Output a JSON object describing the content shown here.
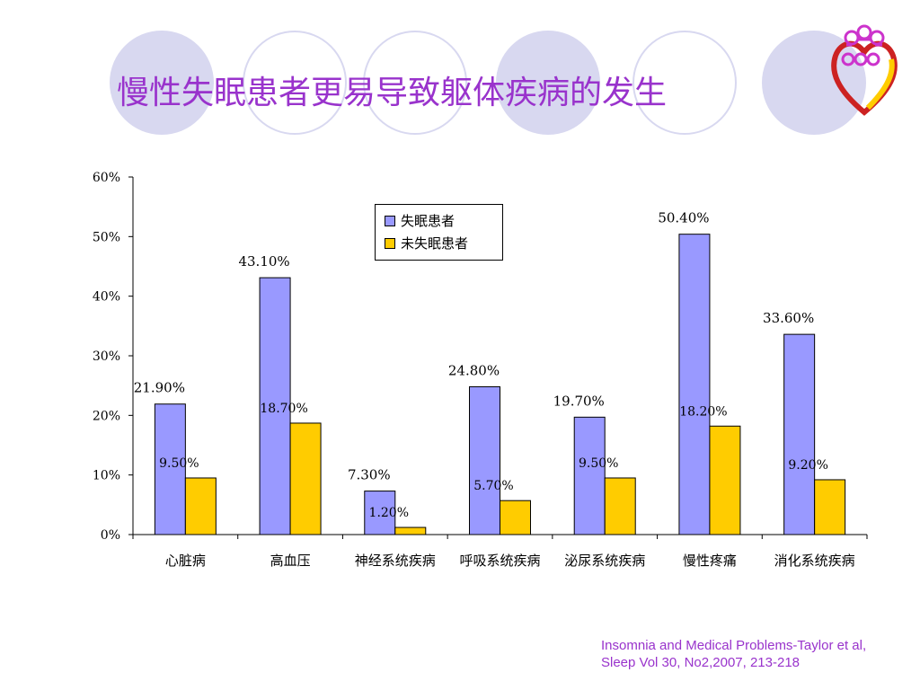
{
  "slide": {
    "title": "慢性失眠患者更易导致躯体疾病的发生",
    "citation": "Insomnia and Medical Problems-Taylor et al, Sleep Vol 30, No2,2007, 213-218",
    "title_color": "#9933cc",
    "circle_color": "#d8d8f0"
  },
  "logo": {
    "icon": "heart-people-logo-icon"
  },
  "chart_data": {
    "type": "bar",
    "categories": [
      "心脏病",
      "高血压",
      "神经系统疾病",
      "呼吸系统疾病",
      "泌尿系统疾病",
      "慢性疼痛",
      "消化系统疾病"
    ],
    "series": [
      {
        "name": "失眠患者",
        "values": [
          21.9,
          43.1,
          7.3,
          24.8,
          19.7,
          50.4,
          33.6
        ],
        "labels": [
          "21.90%",
          "43.10%",
          "7.30%",
          "24.80%",
          "19.70%",
          "50.40%",
          "33.60%"
        ],
        "color": "#9999ff"
      },
      {
        "name": "未失眠患者",
        "values": [
          9.5,
          18.7,
          1.2,
          5.7,
          9.5,
          18.2,
          9.2
        ],
        "labels": [
          "9.50%",
          "18.70%",
          "1.20%",
          "5.70%",
          "9.50%",
          "18.20%",
          "9.20%"
        ],
        "color": "#ffcc00"
      }
    ],
    "yticks": [
      "0%",
      "10%",
      "20%",
      "30%",
      "40%",
      "50%",
      "60%"
    ],
    "ylim": [
      0,
      60
    ],
    "grid": false,
    "legend_position": "top-center"
  }
}
